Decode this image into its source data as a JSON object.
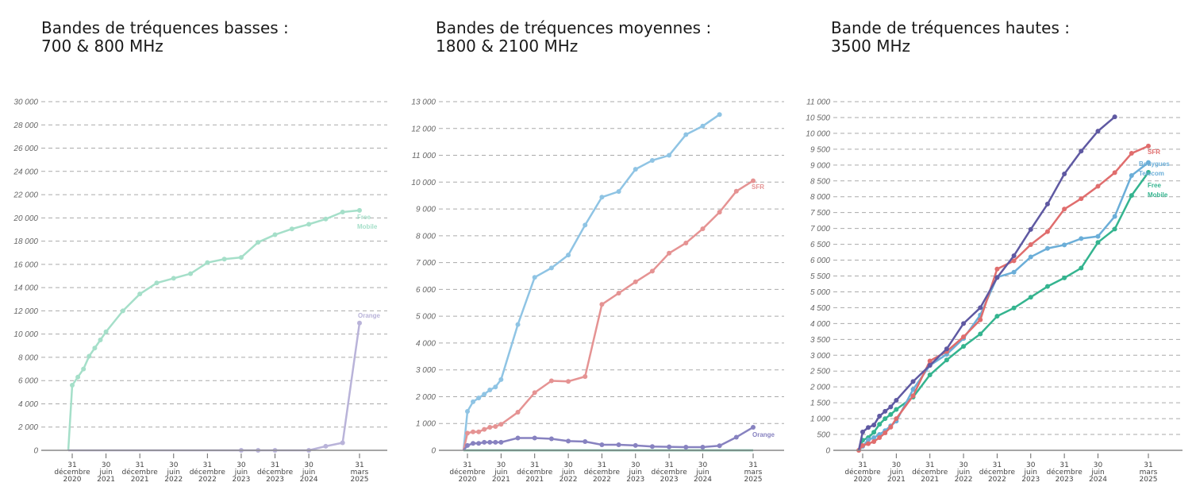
{
  "chart_data": [
    {
      "type": "line",
      "title": [
        "Bandes de tréquences basses :",
        "700 & 800 MHz"
      ],
      "xlabel": "",
      "ylabel": "",
      "ylim": [
        0,
        30000
      ],
      "ystep": 2000,
      "y_tick_labels": [
        "0",
        "2 000",
        "4 000",
        "6 000",
        "8 000",
        "10 000",
        "12 000",
        "14 000",
        "16 000",
        "18 000",
        "20 000",
        "22 000",
        "24 000",
        "26 000",
        "28 000",
        "30 000"
      ],
      "x_unit": "months since 31 décembre 2020",
      "x_ticks": [
        {
          "x": 0,
          "label": [
            "31",
            "décembre",
            "2020"
          ]
        },
        {
          "x": 6,
          "label": [
            "30",
            "juin",
            "2021"
          ]
        },
        {
          "x": 12,
          "label": [
            "31",
            "décembre",
            "2021"
          ]
        },
        {
          "x": 18,
          "label": [
            "30",
            "juin",
            "2022"
          ]
        },
        {
          "x": 24,
          "label": [
            "31",
            "décembre",
            "2022"
          ]
        },
        {
          "x": 30,
          "label": [
            "30",
            "juin",
            "2023"
          ]
        },
        {
          "x": 36,
          "label": [
            "31",
            "décembre",
            "2023"
          ]
        },
        {
          "x": 42,
          "label": [
            "30",
            "juin",
            "2024"
          ]
        },
        {
          "x": 51,
          "label": [
            "31",
            "mars",
            "2025"
          ]
        }
      ],
      "grid": true,
      "series": [
        {
          "name": "Free Mobile",
          "label": [
            "Free",
            "Mobile"
          ],
          "color": "#a5dfc9",
          "line_x": [
            -0.7,
            0,
            1,
            2,
            3,
            4,
            5,
            6,
            9,
            12,
            15,
            18,
            21,
            24,
            27,
            30,
            33,
            36,
            39,
            42,
            45,
            48,
            51
          ],
          "line_y": [
            0,
            5600,
            6300,
            7000,
            8100,
            8800,
            9500,
            10200,
            12000,
            13450,
            14400,
            14800,
            15200,
            16150,
            16450,
            16600,
            17900,
            18550,
            19050,
            19450,
            19900,
            20500,
            20650
          ],
          "marker_from": 1
        },
        {
          "name": "Orange",
          "label": [
            "Orange"
          ],
          "color": "#b9b3d9",
          "line_x": [
            -0.7,
            30,
            33,
            36,
            42,
            45,
            48,
            51
          ],
          "line_y": [
            0,
            0,
            0,
            0,
            0,
            350,
            650,
            10950
          ],
          "marker_from": 1
        }
      ]
    },
    {
      "type": "line",
      "title": [
        "Bandes de tréquences moyennes :",
        "1800 & 2100 MHz"
      ],
      "xlabel": "",
      "ylabel": "",
      "ylim": [
        0,
        13000
      ],
      "ystep": 1000,
      "y_tick_labels": [
        "0",
        "1 000",
        "2 000",
        "3 000",
        "4 000",
        "5 000",
        "6 000",
        "7 000",
        "8 000",
        "9 000",
        "10 000",
        "11 000",
        "12 000",
        "13 000"
      ],
      "x_unit": "months since 31 décembre 2020",
      "x_ticks": [
        {
          "x": 0,
          "label": [
            "31",
            "décembre",
            "2020"
          ]
        },
        {
          "x": 6,
          "label": [
            "30",
            "juin",
            "2021"
          ]
        },
        {
          "x": 12,
          "label": [
            "31",
            "décembre",
            "2021"
          ]
        },
        {
          "x": 18,
          "label": [
            "30",
            "juin",
            "2022"
          ]
        },
        {
          "x": 24,
          "label": [
            "31",
            "décembre",
            "2022"
          ]
        },
        {
          "x": 30,
          "label": [
            "30",
            "juin",
            "2023"
          ]
        },
        {
          "x": 36,
          "label": [
            "31",
            "décembre",
            "2023"
          ]
        },
        {
          "x": 42,
          "label": [
            "30",
            "juin",
            "2024"
          ]
        },
        {
          "x": 51,
          "label": [
            "31",
            "mars",
            "2025"
          ]
        }
      ],
      "grid": true,
      "series": [
        {
          "name": "Free Mobile",
          "label": [],
          "color": "#4fae8e",
          "line_x": [
            -0.7,
            51
          ],
          "line_y": [
            0,
            0
          ],
          "marker_from": 99
        },
        {
          "name": "Bouygues Telecom",
          "label": [],
          "color": "#8fc4e4",
          "line_x": [
            -0.7,
            0,
            1,
            2,
            3,
            4,
            5,
            6,
            9,
            12,
            15,
            18,
            21,
            24,
            27,
            30,
            33,
            36,
            39,
            42,
            45
          ],
          "line_y": [
            0,
            1450,
            1810,
            1950,
            2090,
            2250,
            2360,
            2640,
            4690,
            6450,
            6800,
            7280,
            8400,
            9440,
            9650,
            10480,
            10810,
            11000,
            11770,
            12090,
            12520
          ],
          "marker_from": 1
        },
        {
          "name": "SFR",
          "label": [
            "SFR"
          ],
          "color": "#e59393",
          "line_x": [
            -0.7,
            0,
            1,
            2,
            3,
            4,
            5,
            6,
            9,
            12,
            15,
            18,
            21,
            24,
            27,
            30,
            33,
            36,
            39,
            42,
            45,
            48,
            51
          ],
          "line_y": [
            0,
            640,
            690,
            690,
            780,
            860,
            890,
            970,
            1420,
            2150,
            2590,
            2570,
            2750,
            5440,
            5860,
            6280,
            6680,
            7350,
            7730,
            8260,
            8880,
            9660,
            10050
          ],
          "marker_from": 1
        },
        {
          "name": "Orange",
          "label": [
            "Orange"
          ],
          "color": "#8782c0",
          "line_x": [
            -0.7,
            0,
            1,
            2,
            3,
            4,
            5,
            6,
            9,
            12,
            15,
            18,
            21,
            24,
            27,
            30,
            33,
            36,
            39,
            42,
            45,
            48,
            51
          ],
          "line_y": [
            0,
            180,
            260,
            260,
            300,
            300,
            300,
            300,
            460,
            460,
            430,
            345,
            325,
            207,
            207,
            180,
            140,
            130,
            120,
            120,
            170,
            490,
            860
          ],
          "marker_from": 1
        }
      ]
    },
    {
      "type": "line",
      "title": [
        "Bande de tréquences hautes :",
        "3500 MHz"
      ],
      "xlabel": "",
      "ylabel": "",
      "ylim": [
        0,
        11000
      ],
      "ystep": 500,
      "y_tick_labels": [
        "0",
        "500",
        "1 000",
        "1 500",
        "2 000",
        "2 500",
        "3 000",
        "3 500",
        "4 000",
        "4 500",
        "5 000",
        "5 500",
        "6 000",
        "6 500",
        "7 000",
        "7 500",
        "8 000",
        "8 500",
        "9 000",
        "9 500",
        "10 000",
        "10 500",
        "11 000"
      ],
      "x_unit": "months since 31 décembre 2020",
      "x_ticks": [
        {
          "x": 0,
          "label": [
            "31",
            "décembre",
            "2020"
          ]
        },
        {
          "x": 6,
          "label": [
            "30",
            "juin",
            "2021"
          ]
        },
        {
          "x": 12,
          "label": [
            "31",
            "décembre",
            "2021"
          ]
        },
        {
          "x": 18,
          "label": [
            "30",
            "juin",
            "2022"
          ]
        },
        {
          "x": 24,
          "label": [
            "31",
            "décembre",
            "2022"
          ]
        },
        {
          "x": 30,
          "label": [
            "30",
            "juin",
            "2023"
          ]
        },
        {
          "x": 36,
          "label": [
            "31",
            "décembre",
            "2023"
          ]
        },
        {
          "x": 42,
          "label": [
            "30",
            "juin",
            "2024"
          ]
        },
        {
          "x": 51,
          "label": [
            "31",
            "mars",
            "2025"
          ]
        }
      ],
      "grid": true,
      "series": [
        {
          "name": "Free Mobile",
          "label": [
            "Free",
            "Mobile"
          ],
          "color": "#34b48f",
          "line_x": [
            -0.7,
            0,
            1,
            2,
            3,
            4,
            5,
            6,
            9,
            12,
            15,
            18,
            21,
            24,
            27,
            30,
            33,
            36,
            39,
            42,
            45,
            48,
            51
          ],
          "line_y": [
            0,
            320,
            400,
            570,
            820,
            1000,
            1130,
            1290,
            1680,
            2380,
            2850,
            3280,
            3670,
            4230,
            4490,
            4830,
            5170,
            5440,
            5750,
            6560,
            6980,
            8040,
            8770
          ],
          "marker_from": 1
        },
        {
          "name": "Bouygues Telecom",
          "label": [
            "Bouygues",
            "Telecom"
          ],
          "color": "#6baed8",
          "line_x": [
            -0.7,
            0,
            1,
            2,
            3,
            4,
            5,
            6,
            9,
            12,
            15,
            18,
            21,
            24,
            27,
            30,
            33,
            36,
            39,
            42,
            45,
            48,
            51
          ],
          "line_y": [
            0,
            125,
            330,
            400,
            500,
            620,
            770,
            920,
            1920,
            2680,
            3030,
            3530,
            4270,
            5460,
            5620,
            6100,
            6370,
            6480,
            6680,
            6750,
            7380,
            8670,
            9080
          ],
          "marker_from": 1
        },
        {
          "name": "SFR",
          "label": [
            "SFR"
          ],
          "color": "#e06d6d",
          "line_x": [
            -0.7,
            0,
            1,
            2,
            3,
            4,
            5,
            6,
            9,
            12,
            15,
            18,
            21,
            24,
            27,
            30,
            33,
            36,
            39,
            42,
            45,
            48,
            51
          ],
          "line_y": [
            0,
            150,
            210,
            275,
            400,
            550,
            730,
            1000,
            1720,
            2820,
            3120,
            3580,
            4120,
            5720,
            5980,
            6490,
            6900,
            7610,
            7940,
            8330,
            8760,
            9370,
            9600
          ],
          "marker_from": 0
        },
        {
          "name": "Orange",
          "label": [],
          "color": "#5f59a2",
          "line_x": [
            -0.7,
            0,
            1,
            2,
            3,
            4,
            5,
            6,
            9,
            12,
            15,
            18,
            21,
            24,
            27,
            30,
            33,
            36,
            39,
            42,
            45
          ],
          "line_y": [
            0,
            580,
            720,
            800,
            1080,
            1230,
            1370,
            1580,
            2170,
            2680,
            3200,
            4000,
            4500,
            5450,
            6140,
            6970,
            7770,
            8720,
            9440,
            10070,
            10520
          ],
          "marker_from": 1
        }
      ]
    }
  ]
}
